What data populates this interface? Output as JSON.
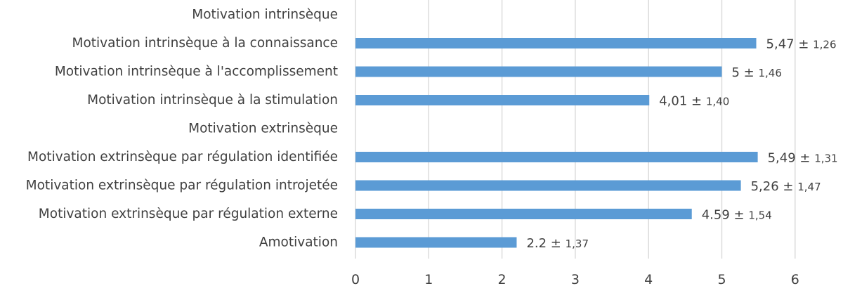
{
  "chart_data": {
    "type": "bar",
    "orientation": "horizontal",
    "categories": [
      "Motivation intrinsèque",
      "Motivation intrinsèque à la connaissance",
      "Motivation intrinsèque à l'accomplissement",
      "Motivation intrinsèque à la stimulation",
      "Motivation extrinsèque",
      "Motivation extrinsèque par régulation identifiée",
      "Motivation extrinsèque par régulation introjetée",
      "Motivation extrinsèque par régulation externe",
      "Amotivation"
    ],
    "values": [
      null,
      5.47,
      5.0,
      4.01,
      null,
      5.49,
      5.26,
      4.59,
      2.2
    ],
    "data_labels": [
      "",
      "5,47 ± 1,26",
      "5 ± 1,46",
      "4,01 ± 1,40",
      "",
      "5,49 ± 1,31",
      "5,26 ± 1,47",
      "4.59 ± 1,54",
      "2.2 ± 1,37"
    ],
    "xlim": [
      0,
      6
    ],
    "x_ticks": [
      "0",
      "1",
      "2",
      "3",
      "4",
      "5",
      "6"
    ],
    "grid": true,
    "bar_color": "#5b9bd5",
    "grid_color": "#d9d9d9",
    "text_color": "#404040"
  }
}
